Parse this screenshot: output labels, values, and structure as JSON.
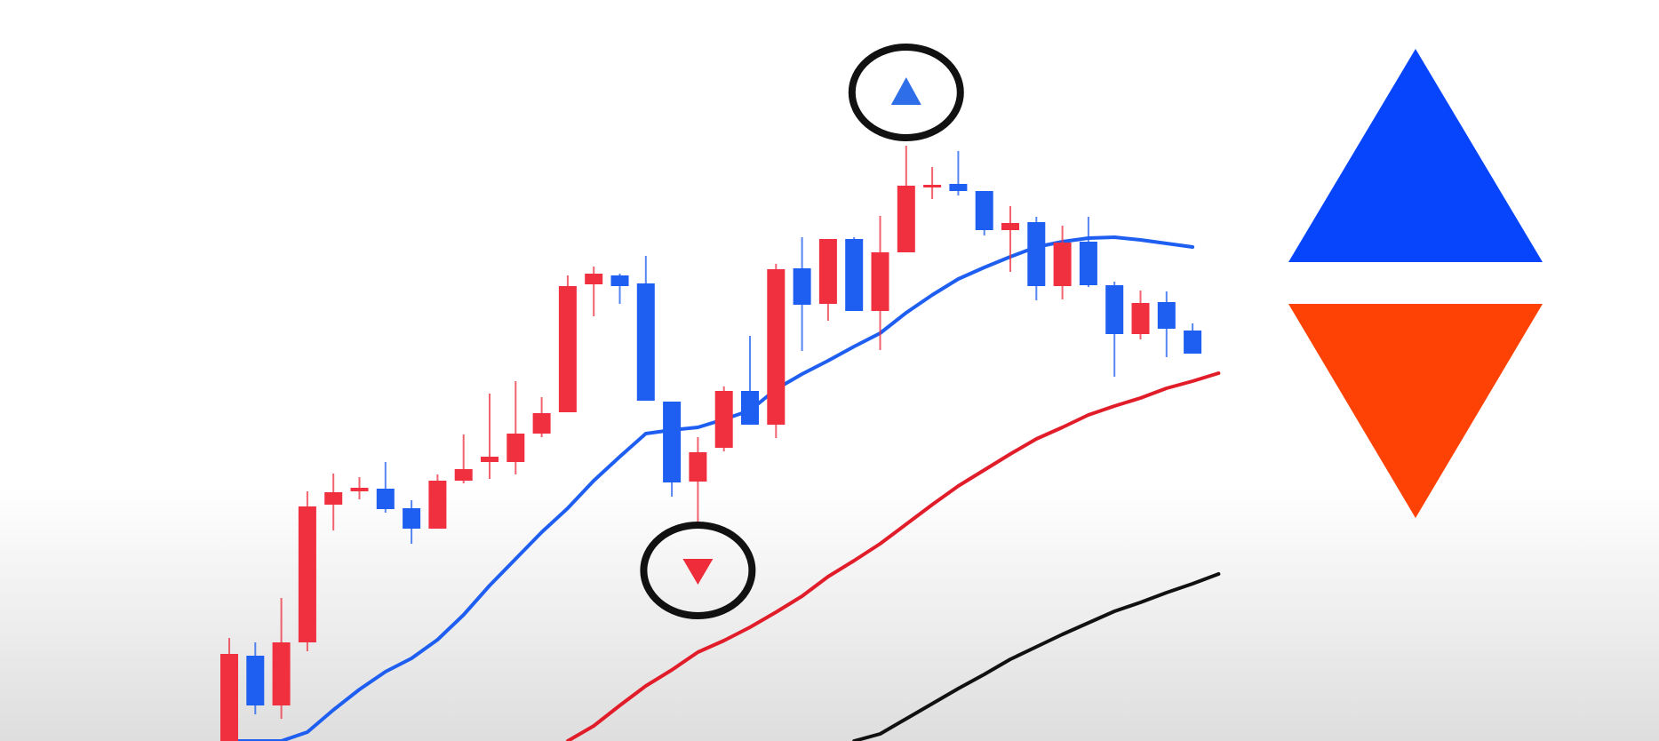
{
  "chart_data": {
    "type": "candlestick",
    "title": "",
    "xlabel": "",
    "ylabel": "",
    "axes_visible": false,
    "grid": false,
    "ylim": [
      0,
      834
    ],
    "colors": {
      "bull": "#1e5ef0",
      "bear": "#f0303f",
      "ma_fast": "#1e5ef0",
      "ma_mid": "#e11d2a",
      "ma_slow": "#111111",
      "marker_circle": "#111111"
    },
    "candles": [
      {
        "i": 0,
        "open": 98,
        "close": 0,
        "high": 116,
        "low": 0,
        "color": "bear"
      },
      {
        "i": 1,
        "open": 40,
        "close": 96,
        "high": 111,
        "low": 30,
        "color": "bull"
      },
      {
        "i": 2,
        "open": 40,
        "close": 111,
        "high": 161,
        "low": 25,
        "color": "bear"
      },
      {
        "i": 3,
        "open": 111,
        "close": 264,
        "high": 281,
        "low": 101,
        "color": "bear"
      },
      {
        "i": 4,
        "open": 266,
        "close": 280,
        "high": 301,
        "low": 237,
        "color": "bear"
      },
      {
        "i": 5,
        "open": 281,
        "close": 285,
        "high": 297,
        "low": 272,
        "color": "bear"
      },
      {
        "i": 6,
        "open": 261,
        "close": 284,
        "high": 314,
        "low": 257,
        "color": "bull"
      },
      {
        "i": 7,
        "open": 239,
        "close": 262,
        "high": 271,
        "low": 222,
        "color": "bull"
      },
      {
        "i": 8,
        "open": 239,
        "close": 293,
        "high": 300,
        "low": 239,
        "color": "bear"
      },
      {
        "i": 9,
        "open": 293,
        "close": 306,
        "high": 345,
        "low": 290,
        "color": "bear"
      },
      {
        "i": 10,
        "open": 314,
        "close": 320,
        "high": 391,
        "low": 295,
        "color": "bear"
      },
      {
        "i": 11,
        "open": 314,
        "close": 346,
        "high": 405,
        "low": 300,
        "color": "bear"
      },
      {
        "i": 12,
        "open": 346,
        "close": 369,
        "high": 387,
        "low": 342,
        "color": "bear"
      },
      {
        "i": 13,
        "open": 370,
        "close": 512,
        "high": 524,
        "low": 370,
        "color": "bear"
      },
      {
        "i": 14,
        "open": 514,
        "close": 526,
        "high": 534,
        "low": 478,
        "color": "bear"
      },
      {
        "i": 15,
        "open": 512,
        "close": 524,
        "high": 526,
        "low": 492,
        "color": "bull"
      },
      {
        "i": 16,
        "open": 383,
        "close": 515,
        "high": 546,
        "low": 383,
        "color": "bull"
      },
      {
        "i": 17,
        "open": 291,
        "close": 382,
        "high": 382,
        "low": 275,
        "color": "bull"
      },
      {
        "i": 18,
        "open": 292,
        "close": 325,
        "high": 342,
        "low": 240,
        "color": "bear"
      },
      {
        "i": 19,
        "open": 330,
        "close": 394,
        "high": 399,
        "low": 326,
        "color": "bear"
      },
      {
        "i": 20,
        "open": 356,
        "close": 394,
        "high": 456,
        "low": 356,
        "color": "bull"
      },
      {
        "i": 21,
        "open": 356,
        "close": 531,
        "high": 537,
        "low": 341,
        "color": "bear"
      },
      {
        "i": 22,
        "open": 491,
        "close": 532,
        "high": 567,
        "low": 439,
        "color": "bull"
      },
      {
        "i": 23,
        "open": 492,
        "close": 565,
        "high": 565,
        "low": 473,
        "color": "bear"
      },
      {
        "i": 24,
        "open": 484,
        "close": 565,
        "high": 567,
        "low": 484,
        "color": "bull"
      },
      {
        "i": 25,
        "open": 484,
        "close": 550,
        "high": 591,
        "low": 440,
        "color": "bear"
      },
      {
        "i": 26,
        "open": 550,
        "close": 625,
        "high": 670,
        "low": 550,
        "color": "bear"
      },
      {
        "i": 27,
        "open": 624,
        "close": 626,
        "high": 646,
        "low": 610,
        "color": "bear"
      },
      {
        "i": 28,
        "open": 619,
        "close": 627,
        "high": 664,
        "low": 614,
        "color": "bull"
      },
      {
        "i": 29,
        "open": 575,
        "close": 619,
        "high": 619,
        "low": 569,
        "color": "bull"
      },
      {
        "i": 30,
        "open": 575,
        "close": 583,
        "high": 602,
        "low": 528,
        "color": "bear"
      },
      {
        "i": 31,
        "open": 512,
        "close": 584,
        "high": 590,
        "low": 496,
        "color": "bull"
      },
      {
        "i": 32,
        "open": 512,
        "close": 561,
        "high": 580,
        "low": 497,
        "color": "bear"
      },
      {
        "i": 33,
        "open": 513,
        "close": 562,
        "high": 590,
        "low": 511,
        "color": "bull"
      },
      {
        "i": 34,
        "open": 458,
        "close": 513,
        "high": 517,
        "low": 410,
        "color": "bull"
      },
      {
        "i": 35,
        "open": 458,
        "close": 493,
        "high": 507,
        "low": 452,
        "color": "bear"
      },
      {
        "i": 36,
        "open": 464,
        "close": 494,
        "high": 506,
        "low": 432,
        "color": "bull"
      },
      {
        "i": 37,
        "open": 436,
        "close": 462,
        "high": 470,
        "low": 436,
        "color": "bull"
      }
    ],
    "moving_averages": [
      {
        "points": [
          [
            0,
            0
          ],
          [
            1,
            0
          ],
          [
            2,
            0
          ],
          [
            3,
            10
          ],
          [
            4,
            35
          ],
          [
            5,
            58
          ],
          [
            6,
            78
          ],
          [
            7,
            93
          ],
          [
            8,
            114
          ],
          [
            9,
            142
          ],
          [
            10,
            175
          ],
          [
            11,
            205
          ],
          [
            12,
            235
          ],
          [
            13,
            262
          ],
          [
            14,
            293
          ],
          [
            15,
            320
          ],
          [
            16,
            346
          ],
          [
            17,
            350
          ],
          [
            18,
            353
          ],
          [
            19,
            362
          ],
          [
            20,
            372
          ],
          [
            21,
            396
          ],
          [
            22,
            413
          ],
          [
            23,
            428
          ],
          [
            24,
            444
          ],
          [
            25,
            459
          ],
          [
            26,
            482
          ],
          [
            27,
            502
          ],
          [
            28,
            520
          ],
          [
            29,
            533
          ],
          [
            30,
            545
          ],
          [
            31,
            556
          ],
          [
            32,
            562
          ],
          [
            33,
            566
          ],
          [
            34,
            567
          ],
          [
            35,
            564
          ],
          [
            36,
            560
          ],
          [
            37,
            556
          ]
        ]
      },
      {
        "points": [
          [
            13,
            0
          ],
          [
            14,
            17
          ],
          [
            15,
            40
          ],
          [
            16,
            62
          ],
          [
            17,
            80
          ],
          [
            18,
            100
          ],
          [
            19,
            113
          ],
          [
            20,
            128
          ],
          [
            21,
            145
          ],
          [
            22,
            163
          ],
          [
            23,
            185
          ],
          [
            24,
            203
          ],
          [
            25,
            222
          ],
          [
            26,
            244
          ],
          [
            27,
            266
          ],
          [
            28,
            287
          ],
          [
            29,
            305
          ],
          [
            30,
            323
          ],
          [
            31,
            340
          ],
          [
            32,
            353
          ],
          [
            33,
            367
          ],
          [
            34,
            377
          ],
          [
            35,
            386
          ],
          [
            36,
            397
          ],
          [
            37,
            405
          ],
          [
            38,
            414
          ]
        ]
      },
      {
        "points": [
          [
            24,
            0
          ],
          [
            25,
            8
          ],
          [
            26,
            25
          ],
          [
            27,
            42
          ],
          [
            28,
            59
          ],
          [
            29,
            75
          ],
          [
            30,
            92
          ],
          [
            31,
            106
          ],
          [
            32,
            120
          ],
          [
            33,
            133
          ],
          [
            34,
            146
          ],
          [
            35,
            156
          ],
          [
            36,
            167
          ],
          [
            37,
            177
          ],
          [
            38,
            188
          ]
        ]
      }
    ],
    "markers": [
      {
        "at_candle": 26,
        "direction": "up",
        "color": "#2e6ee8"
      },
      {
        "at_candle": 18,
        "direction": "down",
        "color": "#ef2d3a"
      }
    ],
    "logo": {
      "up_color": "#0645fb",
      "down_color": "#fe4104"
    }
  }
}
